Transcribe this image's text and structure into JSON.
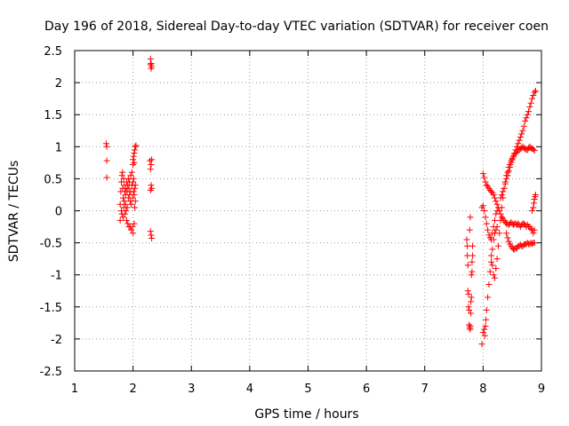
{
  "chart_data": {
    "type": "scatter",
    "title": "Day 196 of 2018, Sidereal Day-to-day VTEC variation (SDTVAR) for receiver coen",
    "xlabel": "GPS time / hours",
    "ylabel": "SDTVAR / TECUs",
    "xlim": [
      1,
      9
    ],
    "ylim": [
      -2.5,
      2.5
    ],
    "x_ticks": [
      "1",
      "2",
      "3",
      "4",
      "5",
      "6",
      "7",
      "8",
      "9"
    ],
    "y_ticks": [
      "2.5",
      "2",
      "1.5",
      "1",
      "0.5",
      "0",
      "-0.5",
      "-1",
      "-1.5",
      "-2",
      "-2.5"
    ],
    "grid": true,
    "marker": "+",
    "series_color": "#ff0000",
    "series": [
      {
        "name": "SDTVAR",
        "points": [
          [
            1.54,
            1.05
          ],
          [
            1.55,
            1.0
          ],
          [
            1.55,
            0.78
          ],
          [
            1.55,
            0.52
          ],
          [
            1.78,
            0.1
          ],
          [
            1.78,
            -0.15
          ],
          [
            1.79,
            0.3
          ],
          [
            1.8,
            0.45
          ],
          [
            1.8,
            0.0
          ],
          [
            1.81,
            0.55
          ],
          [
            1.81,
            -0.05
          ],
          [
            1.82,
            0.6
          ],
          [
            1.82,
            0.35
          ],
          [
            1.83,
            0.2
          ],
          [
            1.83,
            -0.1
          ],
          [
            1.84,
            0.5
          ],
          [
            1.84,
            0.05
          ],
          [
            1.85,
            0.4
          ],
          [
            1.85,
            0.15
          ],
          [
            1.86,
            0.3
          ],
          [
            1.86,
            -0.05
          ],
          [
            1.87,
            0.25
          ],
          [
            1.87,
            0.1
          ],
          [
            1.88,
            0.35
          ],
          [
            1.88,
            0.0
          ],
          [
            1.89,
            0.45
          ],
          [
            1.89,
            -0.15
          ],
          [
            1.9,
            0.3
          ],
          [
            1.9,
            0.05
          ],
          [
            1.91,
            0.4
          ],
          [
            1.91,
            -0.2
          ],
          [
            1.92,
            0.5
          ],
          [
            1.92,
            0.2
          ],
          [
            1.93,
            0.35
          ],
          [
            1.93,
            -0.25
          ],
          [
            1.94,
            0.25
          ],
          [
            1.94,
            0.45
          ],
          [
            1.95,
            0.15
          ],
          [
            1.95,
            -0.25
          ],
          [
            1.96,
            0.55
          ],
          [
            1.96,
            0.3
          ],
          [
            1.97,
            -0.3
          ],
          [
            1.97,
            0.1
          ],
          [
            1.98,
            0.6
          ],
          [
            1.98,
            0.4
          ],
          [
            1.99,
            -0.25
          ],
          [
            1.99,
            0.2
          ],
          [
            2.0,
            0.45
          ],
          [
            2.0,
            -0.35
          ],
          [
            2.01,
            0.5
          ],
          [
            2.01,
            0.3
          ],
          [
            2.02,
            0.25
          ],
          [
            2.02,
            -0.2
          ],
          [
            2.03,
            0.35
          ],
          [
            2.03,
            0.05
          ],
          [
            2.04,
            0.4
          ],
          [
            2.04,
            0.15
          ],
          [
            2.0,
            0.8
          ],
          [
            2.01,
            0.85
          ],
          [
            2.02,
            0.9
          ],
          [
            2.03,
            0.95
          ],
          [
            2.04,
            1.0
          ],
          [
            2.05,
            1.02
          ],
          [
            2.02,
            0.75
          ],
          [
            2.0,
            0.72
          ],
          [
            2.3,
            2.37
          ],
          [
            2.31,
            2.3
          ],
          [
            2.32,
            2.25
          ],
          [
            2.3,
            2.28
          ],
          [
            2.31,
            2.22
          ],
          [
            2.29,
            0.78
          ],
          [
            2.31,
            0.72
          ],
          [
            2.32,
            0.8
          ],
          [
            2.3,
            0.65
          ],
          [
            2.31,
            0.4
          ],
          [
            2.32,
            0.35
          ],
          [
            2.3,
            0.32
          ],
          [
            2.3,
            -0.32
          ],
          [
            2.31,
            -0.38
          ],
          [
            2.32,
            -0.43
          ],
          [
            7.72,
            -0.45
          ],
          [
            7.73,
            -0.55
          ],
          [
            7.73,
            -0.7
          ],
          [
            7.74,
            -0.85
          ],
          [
            7.74,
            -1.25
          ],
          [
            7.75,
            -1.3
          ],
          [
            7.75,
            -1.5
          ],
          [
            7.76,
            -1.55
          ],
          [
            7.76,
            -1.78
          ],
          [
            7.77,
            -1.83
          ],
          [
            7.78,
            -1.85
          ],
          [
            7.78,
            -1.8
          ],
          [
            7.79,
            -1.6
          ],
          [
            7.79,
            -1.42
          ],
          [
            7.8,
            -1.35
          ],
          [
            7.8,
            -1.0
          ],
          [
            7.81,
            -0.95
          ],
          [
            7.81,
            -0.8
          ],
          [
            7.82,
            -0.7
          ],
          [
            7.82,
            -0.55
          ],
          [
            7.77,
            -0.3
          ],
          [
            7.78,
            -0.1
          ],
          [
            7.98,
            -2.08
          ],
          [
            8.0,
            -1.9
          ],
          [
            8.02,
            -1.85
          ],
          [
            8.03,
            -1.95
          ],
          [
            8.04,
            -1.8
          ],
          [
            8.05,
            -1.7
          ],
          [
            8.06,
            -1.55
          ],
          [
            8.08,
            -1.35
          ],
          [
            8.1,
            -1.15
          ],
          [
            8.12,
            -0.95
          ],
          [
            8.14,
            -0.8
          ],
          [
            8.16,
            -0.6
          ],
          [
            8.18,
            -0.45
          ],
          [
            8.2,
            -0.35
          ],
          [
            8.22,
            -0.3
          ],
          [
            8.24,
            -0.25
          ],
          [
            7.98,
            0.05
          ],
          [
            8.0,
            0.08
          ],
          [
            8.02,
            0.0
          ],
          [
            8.04,
            -0.1
          ],
          [
            8.06,
            -0.2
          ],
          [
            8.08,
            -0.3
          ],
          [
            8.1,
            -0.38
          ],
          [
            8.12,
            -0.42
          ],
          [
            8.14,
            -0.45
          ],
          [
            8.16,
            -0.35
          ],
          [
            8.18,
            -0.25
          ],
          [
            8.2,
            -0.15
          ],
          [
            8.22,
            -0.05
          ],
          [
            8.24,
            0.0
          ],
          [
            8.0,
            0.58
          ],
          [
            8.02,
            0.52
          ],
          [
            8.04,
            0.45
          ],
          [
            8.06,
            0.4
          ],
          [
            8.08,
            0.38
          ],
          [
            8.1,
            0.35
          ],
          [
            8.12,
            0.32
          ],
          [
            8.14,
            0.3
          ],
          [
            8.16,
            0.28
          ],
          [
            8.18,
            0.25
          ],
          [
            8.2,
            0.2
          ],
          [
            8.22,
            0.15
          ],
          [
            8.24,
            0.1
          ],
          [
            8.26,
            0.05
          ],
          [
            8.28,
            0.0
          ],
          [
            8.3,
            -0.05
          ],
          [
            8.32,
            -0.1
          ],
          [
            8.34,
            -0.12
          ],
          [
            8.36,
            -0.15
          ],
          [
            8.38,
            -0.18
          ],
          [
            8.4,
            -0.2
          ],
          [
            8.42,
            -0.2
          ],
          [
            8.44,
            -0.22
          ],
          [
            8.46,
            -0.2
          ],
          [
            8.48,
            -0.18
          ],
          [
            8.5,
            -0.2
          ],
          [
            8.52,
            -0.22
          ],
          [
            8.54,
            -0.2
          ],
          [
            8.56,
            -0.2
          ],
          [
            8.58,
            -0.22
          ],
          [
            8.6,
            -0.2
          ],
          [
            8.62,
            -0.22
          ],
          [
            8.64,
            -0.25
          ],
          [
            8.66,
            -0.22
          ],
          [
            8.68,
            -0.2
          ],
          [
            8.7,
            -0.2
          ],
          [
            8.72,
            -0.22
          ],
          [
            8.74,
            -0.25
          ],
          [
            8.76,
            -0.22
          ],
          [
            8.78,
            -0.25
          ],
          [
            8.8,
            -0.25
          ],
          [
            8.82,
            -0.28
          ],
          [
            8.84,
            -0.3
          ],
          [
            8.86,
            -0.35
          ],
          [
            8.88,
            -0.3
          ],
          [
            8.14,
            -0.7
          ],
          [
            8.16,
            -0.85
          ],
          [
            8.18,
            -1.0
          ],
          [
            8.2,
            -1.05
          ],
          [
            8.22,
            -0.9
          ],
          [
            8.24,
            -0.75
          ],
          [
            8.26,
            -0.55
          ],
          [
            8.28,
            -0.35
          ],
          [
            8.3,
            -0.15
          ],
          [
            8.32,
            0.05
          ],
          [
            8.34,
            0.2
          ],
          [
            8.36,
            0.35
          ],
          [
            8.38,
            0.45
          ],
          [
            8.4,
            0.55
          ],
          [
            8.42,
            0.6
          ],
          [
            8.44,
            0.68
          ],
          [
            8.46,
            0.72
          ],
          [
            8.48,
            0.78
          ],
          [
            8.5,
            0.82
          ],
          [
            8.52,
            0.85
          ],
          [
            8.54,
            0.88
          ],
          [
            8.56,
            0.9
          ],
          [
            8.58,
            0.92
          ],
          [
            8.6,
            0.95
          ],
          [
            8.62,
            0.95
          ],
          [
            8.64,
            0.97
          ],
          [
            8.66,
            0.98
          ],
          [
            8.68,
            1.0
          ],
          [
            8.7,
            0.98
          ],
          [
            8.72,
            0.97
          ],
          [
            8.74,
            0.95
          ],
          [
            8.76,
            0.95
          ],
          [
            8.78,
            0.98
          ],
          [
            8.8,
            1.0
          ],
          [
            8.82,
            0.98
          ],
          [
            8.84,
            0.97
          ],
          [
            8.86,
            0.96
          ],
          [
            8.88,
            0.94
          ],
          [
            8.4,
            -0.35
          ],
          [
            8.42,
            -0.42
          ],
          [
            8.44,
            -0.48
          ],
          [
            8.46,
            -0.52
          ],
          [
            8.48,
            -0.55
          ],
          [
            8.5,
            -0.58
          ],
          [
            8.52,
            -0.6
          ],
          [
            8.54,
            -0.6
          ],
          [
            8.56,
            -0.58
          ],
          [
            8.58,
            -0.58
          ],
          [
            8.6,
            -0.55
          ],
          [
            8.62,
            -0.55
          ],
          [
            8.64,
            -0.53
          ],
          [
            8.66,
            -0.55
          ],
          [
            8.68,
            -0.55
          ],
          [
            8.7,
            -0.53
          ],
          [
            8.72,
            -0.52
          ],
          [
            8.74,
            -0.52
          ],
          [
            8.76,
            -0.5
          ],
          [
            8.78,
            -0.52
          ],
          [
            8.8,
            -0.52
          ],
          [
            8.82,
            -0.5
          ],
          [
            8.84,
            -0.52
          ],
          [
            8.86,
            -0.5
          ],
          [
            8.88,
            -0.5
          ],
          [
            8.3,
            0.2
          ],
          [
            8.32,
            0.25
          ],
          [
            8.34,
            0.3
          ],
          [
            8.36,
            0.35
          ],
          [
            8.38,
            0.42
          ],
          [
            8.4,
            0.5
          ],
          [
            8.42,
            0.55
          ],
          [
            8.44,
            0.62
          ],
          [
            8.46,
            0.68
          ],
          [
            8.48,
            0.75
          ],
          [
            8.5,
            0.8
          ],
          [
            8.52,
            0.85
          ],
          [
            8.54,
            0.9
          ],
          [
            8.56,
            0.95
          ],
          [
            8.58,
            1.0
          ],
          [
            8.6,
            1.05
          ],
          [
            8.62,
            1.1
          ],
          [
            8.64,
            1.15
          ],
          [
            8.66,
            1.2
          ],
          [
            8.68,
            1.25
          ],
          [
            8.7,
            1.32
          ],
          [
            8.72,
            1.4
          ],
          [
            8.74,
            1.45
          ],
          [
            8.76,
            1.5
          ],
          [
            8.78,
            1.55
          ],
          [
            8.8,
            1.62
          ],
          [
            8.82,
            1.68
          ],
          [
            8.84,
            1.75
          ],
          [
            8.86,
            1.8
          ],
          [
            8.88,
            1.85
          ],
          [
            8.9,
            1.87
          ],
          [
            8.84,
            0.0
          ],
          [
            8.86,
            0.05
          ],
          [
            8.87,
            0.12
          ],
          [
            8.88,
            0.18
          ],
          [
            8.89,
            0.22
          ],
          [
            8.9,
            0.25
          ]
        ]
      }
    ]
  }
}
